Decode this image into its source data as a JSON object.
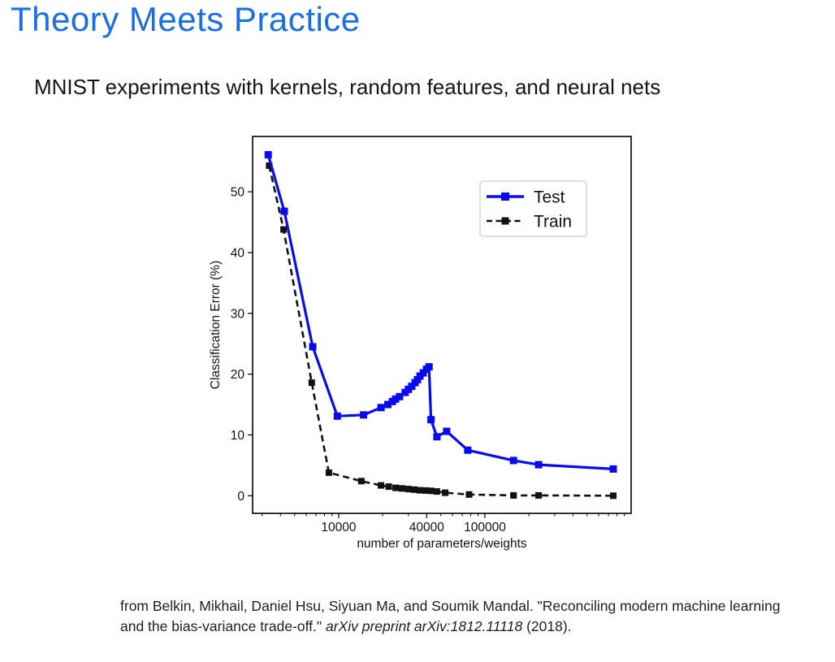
{
  "slide": {
    "title": "Theory Meets Practice",
    "subtitle": "MNIST experiments with kernels, random features, and neural nets",
    "citation": {
      "plain": "from Belkin, Mikhail, Daniel Hsu, Siyuan Ma, and Soumik Mandal. \"Reconciling modern machine learning and the bias-variance trade-off.\" ",
      "italic": "arXiv preprint arXiv:1812.11118",
      "tail": " (2018)."
    }
  },
  "colors": {
    "title_blue": "#1b6fe2",
    "test_line": "#0a0af0",
    "train_line": "#111111",
    "axis": "#000000",
    "legend_border": "#cccccc"
  },
  "chart_data": {
    "type": "line",
    "title": "",
    "xlabel": "number of parameters/weights",
    "ylabel": "Classification Error (%)",
    "x_scale": "log",
    "xlim": [
      2580,
      1000000
    ],
    "ylim": [
      -2.9,
      59.1
    ],
    "grid": false,
    "legend_position": "upper right",
    "x_major_ticks": [
      {
        "value": 10000,
        "label": "10000"
      },
      {
        "value": 40000,
        "label": "40000"
      },
      {
        "value": 100000,
        "label": "100000"
      }
    ],
    "x_minor_tick_decades": [
      3,
      4,
      5
    ],
    "y_ticks": [
      0,
      10,
      20,
      30,
      40,
      50
    ],
    "series": [
      {
        "name": "Test",
        "color": "#0a0af0",
        "style": "solid",
        "marker": "square",
        "points": [
          [
            3300,
            56.1
          ],
          [
            4250,
            46.8
          ],
          [
            6650,
            24.5
          ],
          [
            9800,
            13.1
          ],
          [
            14800,
            13.3
          ],
          [
            19500,
            14.5
          ],
          [
            21700,
            15.0
          ],
          [
            23300,
            15.5
          ],
          [
            24500,
            15.9
          ],
          [
            26100,
            16.3
          ],
          [
            28500,
            17.0
          ],
          [
            30000,
            17.5
          ],
          [
            31600,
            18.0
          ],
          [
            33300,
            18.6
          ],
          [
            34600,
            19.1
          ],
          [
            36000,
            19.7
          ],
          [
            37900,
            20.2
          ],
          [
            39900,
            20.8
          ],
          [
            41500,
            21.2
          ],
          [
            42800,
            12.5
          ],
          [
            47000,
            9.7
          ],
          [
            54800,
            10.6
          ],
          [
            76400,
            7.5
          ],
          [
            157000,
            5.8
          ],
          [
            233000,
            5.1
          ],
          [
            755000,
            4.4
          ]
        ]
      },
      {
        "name": "Train",
        "color": "#111111",
        "style": "dashed",
        "marker": "square",
        "points": [
          [
            3350,
            54.3
          ],
          [
            4200,
            43.8
          ],
          [
            6550,
            18.6
          ],
          [
            8570,
            3.8
          ],
          [
            14300,
            2.4
          ],
          [
            19500,
            1.7
          ],
          [
            22000,
            1.5
          ],
          [
            24500,
            1.3
          ],
          [
            27100,
            1.2
          ],
          [
            30000,
            1.1
          ],
          [
            32900,
            1.0
          ],
          [
            36000,
            0.9
          ],
          [
            39400,
            0.85
          ],
          [
            43000,
            0.8
          ],
          [
            47000,
            0.7
          ],
          [
            53500,
            0.5
          ],
          [
            78000,
            0.2
          ],
          [
            157000,
            0.05
          ],
          [
            233000,
            0.05
          ],
          [
            755000,
            0.0
          ]
        ]
      }
    ]
  }
}
